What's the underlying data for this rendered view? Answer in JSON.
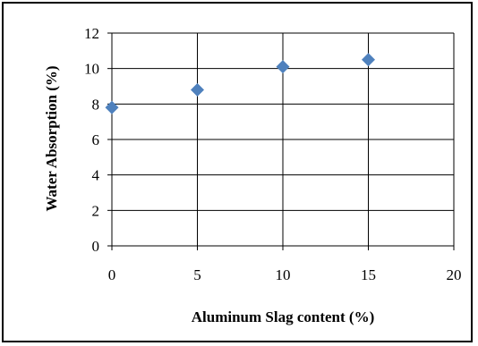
{
  "chart_data": {
    "type": "scatter",
    "title": "",
    "xlabel": "Aluminum Slag content (%)",
    "ylabel": "Water Absorption (%)",
    "xlim": [
      0,
      20
    ],
    "ylim": [
      0,
      12
    ],
    "xticks": [
      "0",
      "5",
      "10",
      "15",
      "20"
    ],
    "yticks": [
      "0",
      "2",
      "4",
      "6",
      "8",
      "10",
      "12"
    ],
    "grid": true,
    "legend": "none",
    "marker": "diamond",
    "marker_color": "#4F81BD",
    "series": [
      {
        "x": [
          0,
          5,
          10,
          15
        ],
        "y": [
          7.8,
          8.8,
          10.1,
          10.5
        ]
      }
    ]
  }
}
